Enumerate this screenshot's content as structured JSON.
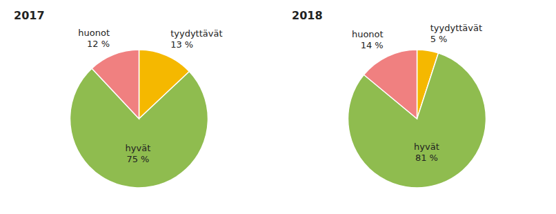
{
  "chart_data": [
    {
      "type": "pie",
      "title": "2017",
      "categories": [
        "tyydyttävät",
        "hyvät",
        "huonot"
      ],
      "values": [
        13,
        75,
        12
      ],
      "value_labels": [
        "13 %",
        "75 %",
        "12 %"
      ],
      "colors": [
        "#f5b800",
        "#8fbc4f",
        "#f08080"
      ],
      "data_labels": true
    },
    {
      "type": "pie",
      "title": "2018",
      "categories": [
        "tyydyttävät",
        "hyvät",
        "huonot"
      ],
      "values": [
        5,
        81,
        14
      ],
      "value_labels": [
        "5 %",
        "81 %",
        "14 %"
      ],
      "colors": [
        "#f5b800",
        "#8fbc4f",
        "#f08080"
      ],
      "data_labels": true
    }
  ]
}
